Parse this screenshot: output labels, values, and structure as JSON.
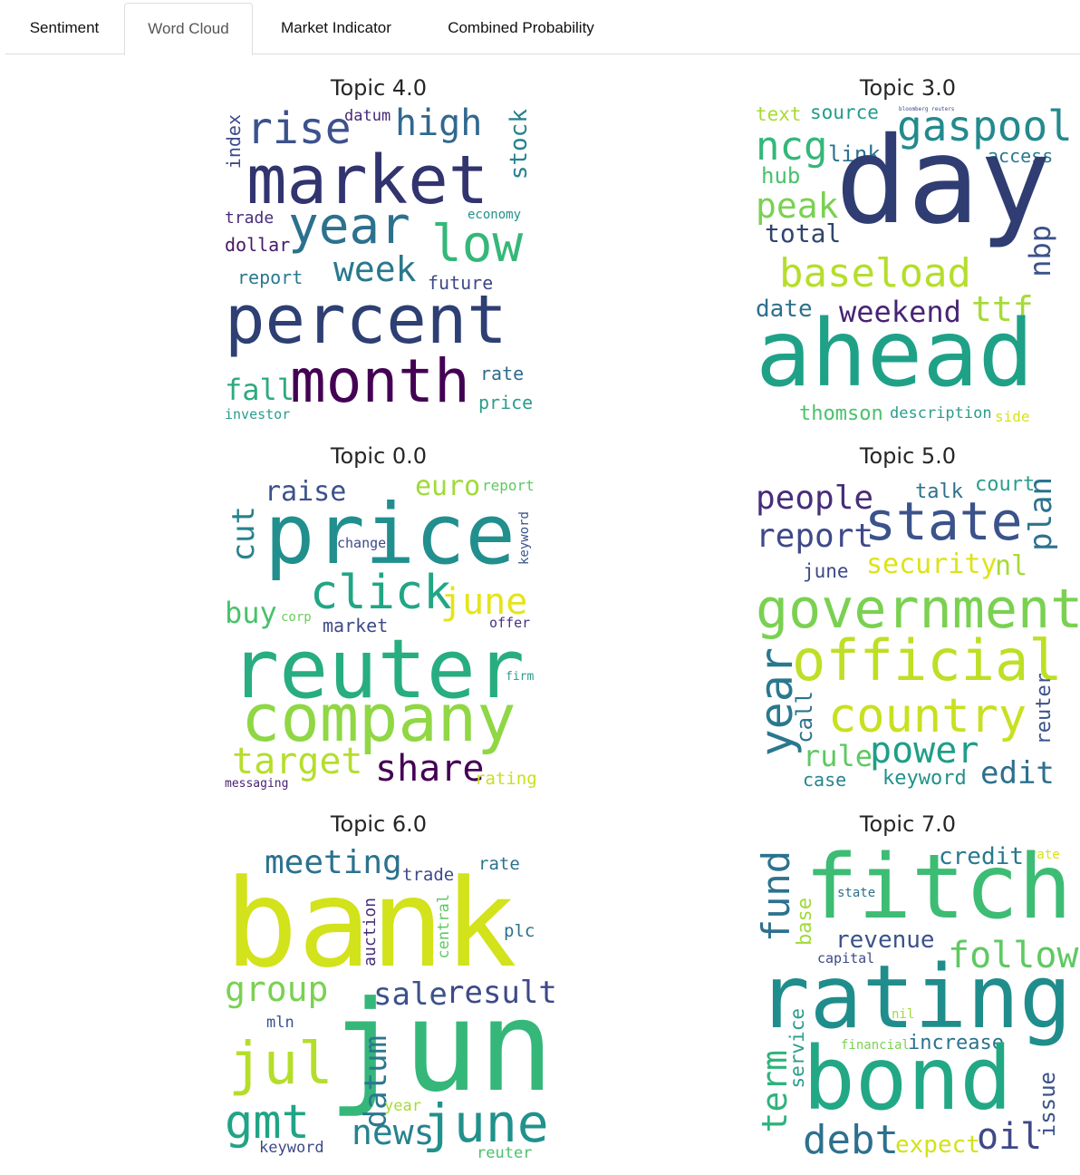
{
  "tabs": [
    {
      "label": "Sentiment",
      "active": false
    },
    {
      "label": "Word Cloud",
      "active": true
    },
    {
      "label": "Market Indicator",
      "active": false
    },
    {
      "label": "Combined Probability",
      "active": false
    }
  ],
  "clouds": [
    {
      "title": "Topic 4.0",
      "words": [
        {
          "text": "rise",
          "color": "#3b528b"
        },
        {
          "text": "datum",
          "color": "#482878"
        },
        {
          "text": "high",
          "color": "#31688e"
        },
        {
          "text": "index",
          "color": "#3e4a89"
        },
        {
          "text": "stock",
          "color": "#26828e"
        },
        {
          "text": "market",
          "color": "#31346e"
        },
        {
          "text": "year",
          "color": "#2c718e"
        },
        {
          "text": "low",
          "color": "#35b779"
        },
        {
          "text": "trade",
          "color": "#472c7a"
        },
        {
          "text": "economy",
          "color": "#21918c"
        },
        {
          "text": "dollar",
          "color": "#481769"
        },
        {
          "text": "week",
          "color": "#2a788e"
        },
        {
          "text": "report",
          "color": "#2a788e"
        },
        {
          "text": "future",
          "color": "#3e4989"
        },
        {
          "text": "percent",
          "color": "#2d3f73"
        },
        {
          "text": "fall",
          "color": "#2ea97f"
        },
        {
          "text": "month",
          "color": "#440154"
        },
        {
          "text": "rate",
          "color": "#2e6c8e"
        },
        {
          "text": "price",
          "color": "#2a9d8c"
        },
        {
          "text": "investor",
          "color": "#2a9d8c"
        }
      ]
    },
    {
      "title": "Topic 3.0",
      "words": [
        {
          "text": "text",
          "color": "#a8db34"
        },
        {
          "text": "source",
          "color": "#1f9e89"
        },
        {
          "text": "bloomberg reuters",
          "color": "#3e4989"
        },
        {
          "text": "ncg",
          "color": "#35b779"
        },
        {
          "text": "link",
          "color": "#2c728e"
        },
        {
          "text": "gaspool",
          "color": "#238a8d"
        },
        {
          "text": "access",
          "color": "#2a788e"
        },
        {
          "text": "hub",
          "color": "#4ac16d"
        },
        {
          "text": "day",
          "color": "#2f3d73"
        },
        {
          "text": "peak",
          "color": "#7ad151"
        },
        {
          "text": "total",
          "color": "#31446b"
        },
        {
          "text": "nbp",
          "color": "#3b528b"
        },
        {
          "text": "baseload",
          "color": "#b5de2b"
        },
        {
          "text": "date",
          "color": "#2d708e"
        },
        {
          "text": "weekend",
          "color": "#482475"
        },
        {
          "text": "ttf",
          "color": "#a5db36"
        },
        {
          "text": "ahead",
          "color": "#1fa187"
        },
        {
          "text": "thomson",
          "color": "#4ac16d"
        },
        {
          "text": "description",
          "color": "#2a9d8c"
        },
        {
          "text": "side",
          "color": "#d8e219"
        }
      ]
    },
    {
      "title": "Topic 0.0",
      "words": [
        {
          "text": "raise",
          "color": "#3b528b"
        },
        {
          "text": "euro",
          "color": "#a0da39"
        },
        {
          "text": "report",
          "color": "#5ec962"
        },
        {
          "text": "cut",
          "color": "#26828e"
        },
        {
          "text": "price",
          "color": "#218f8d"
        },
        {
          "text": "change",
          "color": "#3e4989"
        },
        {
          "text": "keyword",
          "color": "#3a548c"
        },
        {
          "text": "click",
          "color": "#21a685"
        },
        {
          "text": "june",
          "color": "#e5e419"
        },
        {
          "text": "buy",
          "color": "#4ac16d"
        },
        {
          "text": "corp",
          "color": "#6ccd5a"
        },
        {
          "text": "market",
          "color": "#3e4a89"
        },
        {
          "text": "offer",
          "color": "#46327e"
        },
        {
          "text": "reuter",
          "color": "#27ad81"
        },
        {
          "text": "firm",
          "color": "#2a9d8c"
        },
        {
          "text": "company",
          "color": "#8fd744"
        },
        {
          "text": "target",
          "color": "#b5de2b"
        },
        {
          "text": "share",
          "color": "#440154"
        },
        {
          "text": "rating",
          "color": "#c8e020"
        },
        {
          "text": "messaging",
          "color": "#482173"
        }
      ]
    },
    {
      "title": "Topic 5.0",
      "words": [
        {
          "text": "people",
          "color": "#472d7b"
        },
        {
          "text": "talk",
          "color": "#2c718e"
        },
        {
          "text": "court",
          "color": "#2a9d8c"
        },
        {
          "text": "state",
          "color": "#3b528b"
        },
        {
          "text": "plan",
          "color": "#2c728e"
        },
        {
          "text": "report",
          "color": "#3e4989"
        },
        {
          "text": "june",
          "color": "#3e4a89"
        },
        {
          "text": "security",
          "color": "#dde318"
        },
        {
          "text": "nl",
          "color": "#a5db36"
        },
        {
          "text": "government",
          "color": "#7ad151"
        },
        {
          "text": "year",
          "color": "#2a788e"
        },
        {
          "text": "official",
          "color": "#bddf26"
        },
        {
          "text": "call",
          "color": "#2c728e"
        },
        {
          "text": "reuter",
          "color": "#3b528b"
        },
        {
          "text": "country",
          "color": "#c8e020"
        },
        {
          "text": "rule",
          "color": "#5ec962"
        },
        {
          "text": "power",
          "color": "#1f9e89"
        },
        {
          "text": "case",
          "color": "#25858e"
        },
        {
          "text": "keyword",
          "color": "#21918c"
        },
        {
          "text": "edit",
          "color": "#2d708e"
        }
      ]
    },
    {
      "title": "Topic 6.0",
      "words": [
        {
          "text": "meeting",
          "color": "#2c728e"
        },
        {
          "text": "trade",
          "color": "#3e4a89"
        },
        {
          "text": "rate",
          "color": "#2c718e"
        },
        {
          "text": "bank",
          "color": "#d2e21b"
        },
        {
          "text": "auction",
          "color": "#472d7b"
        },
        {
          "text": "central",
          "color": "#5ec962"
        },
        {
          "text": "plc",
          "color": "#2c728e"
        },
        {
          "text": "group",
          "color": "#7ad151"
        },
        {
          "text": "sale",
          "color": "#3b528b"
        },
        {
          "text": "result",
          "color": "#3e4989"
        },
        {
          "text": "mln",
          "color": "#3a548c"
        },
        {
          "text": "jun",
          "color": "#35b779"
        },
        {
          "text": "jul",
          "color": "#b5de2b"
        },
        {
          "text": "datum",
          "color": "#2a788e"
        },
        {
          "text": "gmt",
          "color": "#20a486"
        },
        {
          "text": "year",
          "color": "#a5db36"
        },
        {
          "text": "news",
          "color": "#26828e"
        },
        {
          "text": "june",
          "color": "#21918c"
        },
        {
          "text": "keyword",
          "color": "#3e4989"
        },
        {
          "text": "reuter",
          "color": "#4ac16d"
        }
      ]
    },
    {
      "title": "Topic 7.0",
      "words": [
        {
          "text": "fund",
          "color": "#2c728e"
        },
        {
          "text": "credit",
          "color": "#2a788e"
        },
        {
          "text": "rate",
          "color": "#d8e219"
        },
        {
          "text": "fitch",
          "color": "#3dbc74"
        },
        {
          "text": "state",
          "color": "#2c718e"
        },
        {
          "text": "base",
          "color": "#a0da39"
        },
        {
          "text": "revenue",
          "color": "#3b528b"
        },
        {
          "text": "follow",
          "color": "#5ec962"
        },
        {
          "text": "capital",
          "color": "#3e4989"
        },
        {
          "text": "rating",
          "color": "#1f8d8b"
        },
        {
          "text": "nil",
          "color": "#a5db36"
        },
        {
          "text": "service",
          "color": "#2a9d8c"
        },
        {
          "text": "term",
          "color": "#2eb37c"
        },
        {
          "text": "financial",
          "color": "#7ad151"
        },
        {
          "text": "increase",
          "color": "#2c728e"
        },
        {
          "text": "bond",
          "color": "#22a884"
        },
        {
          "text": "issue",
          "color": "#3b528b"
        },
        {
          "text": "debt",
          "color": "#2d708e"
        },
        {
          "text": "expect",
          "color": "#d2e21b"
        },
        {
          "text": "oil",
          "color": "#3e4989"
        }
      ]
    }
  ]
}
